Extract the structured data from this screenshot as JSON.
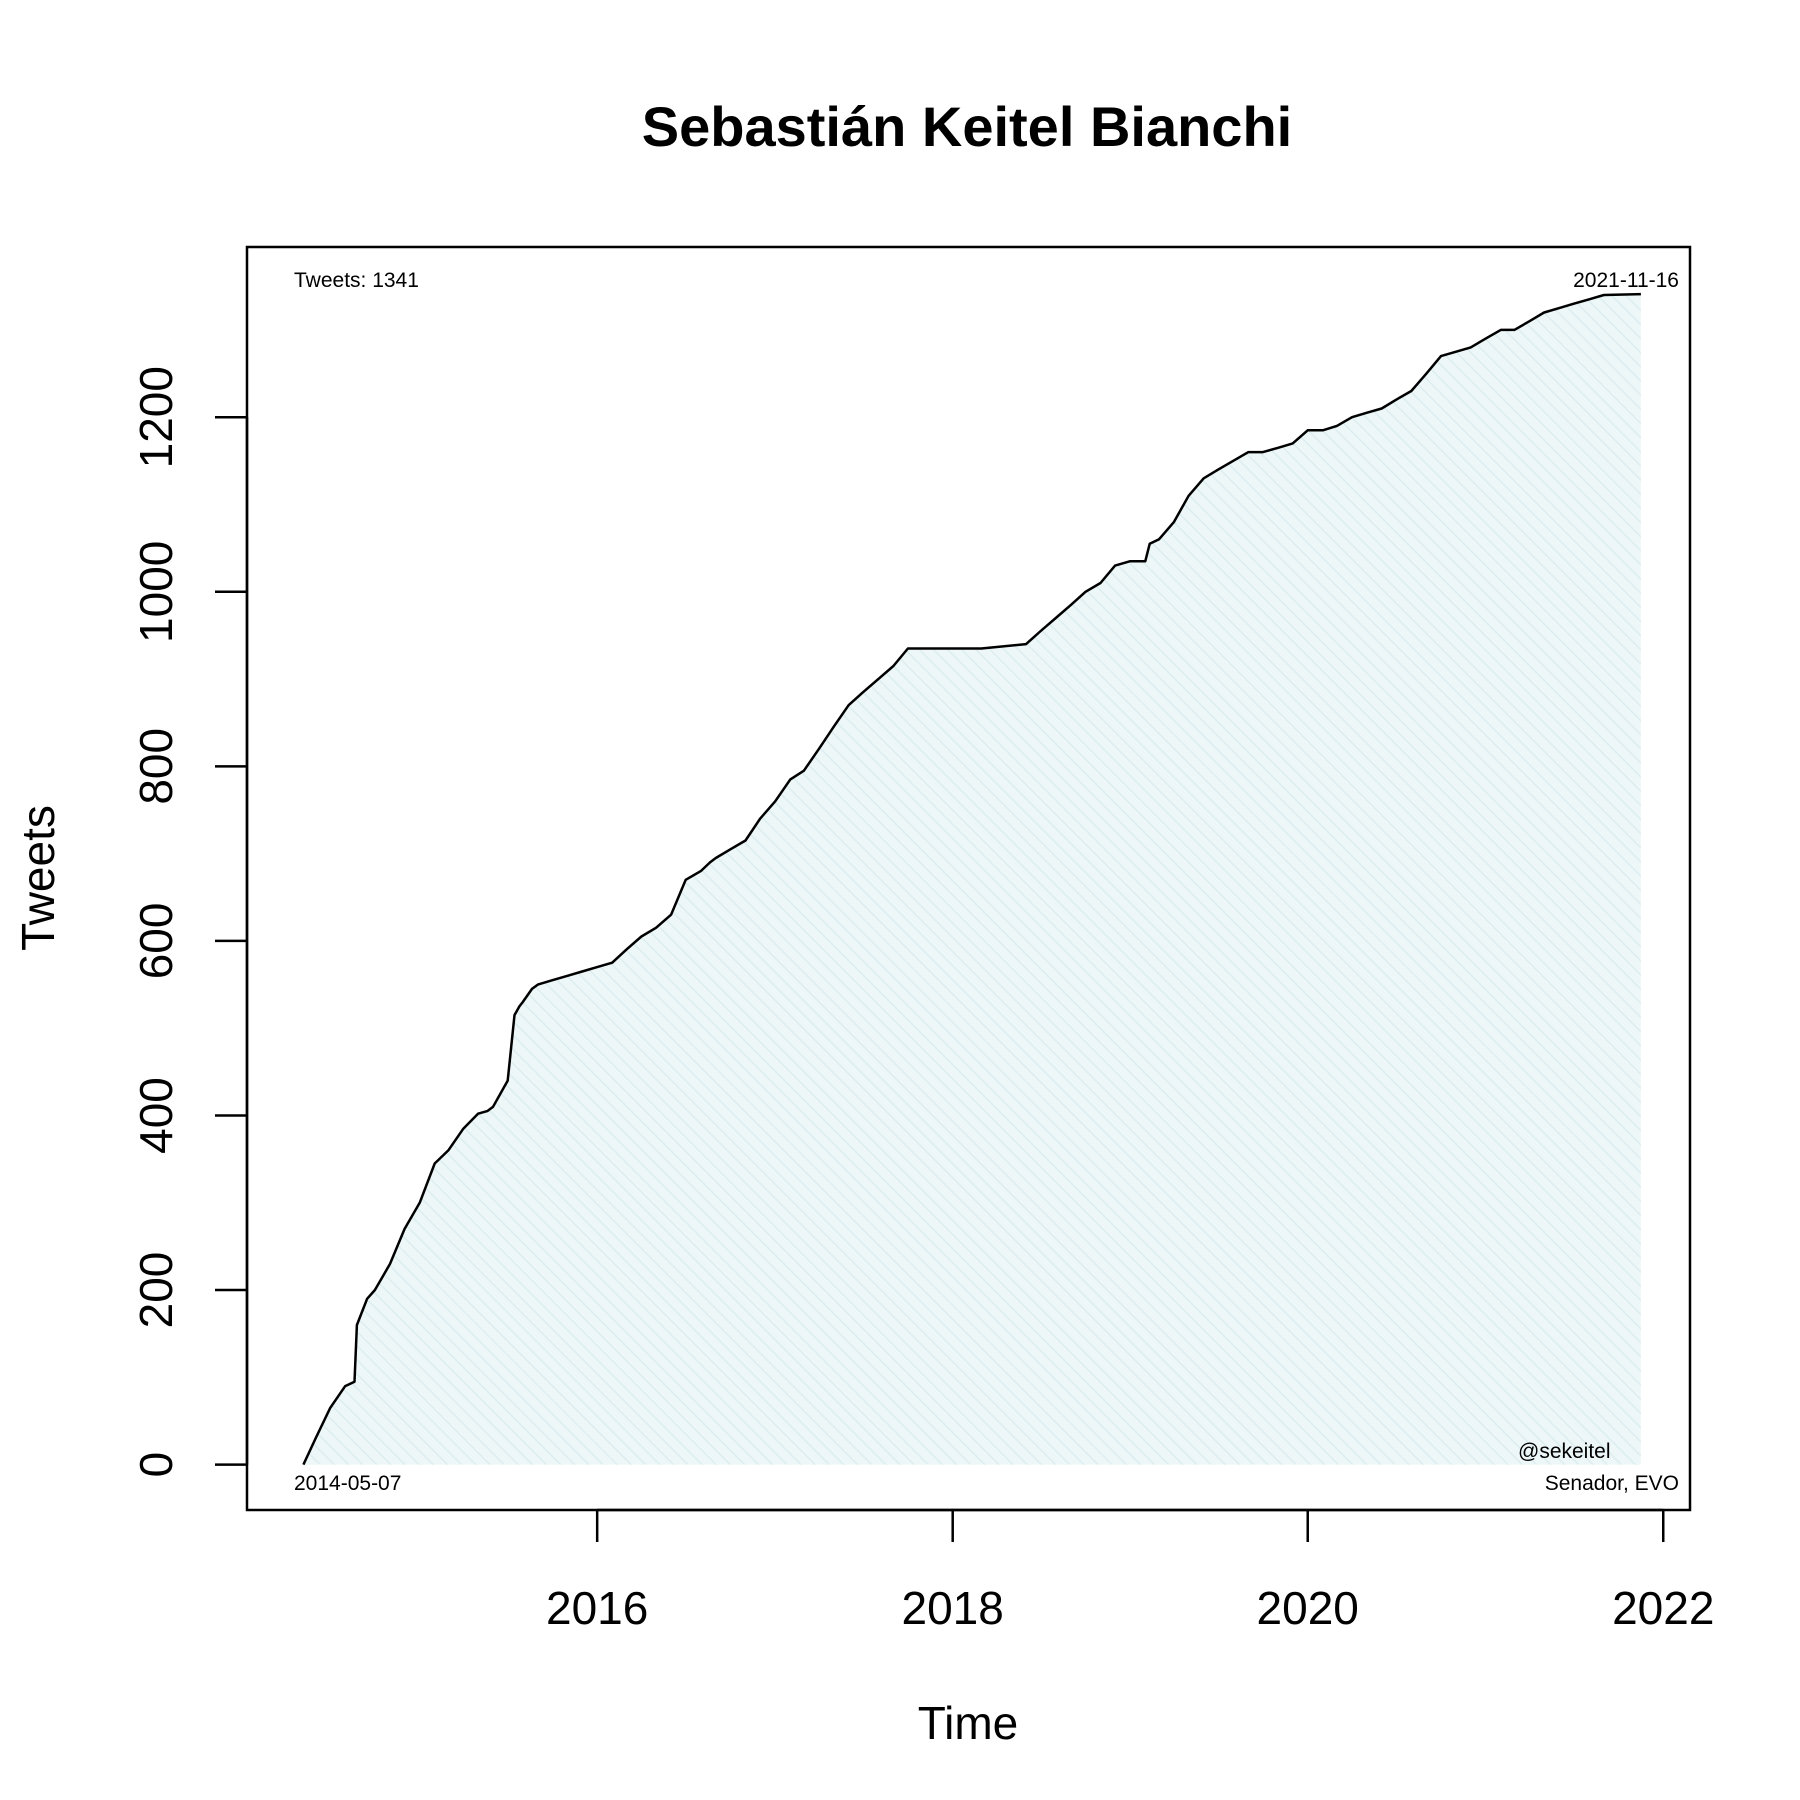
{
  "chart_data": {
    "type": "area",
    "title": "Sebastián Keitel Bianchi",
    "xlabel": "Time",
    "ylabel": "Tweets",
    "xlim": [
      "2014-01-11",
      "2022-02-25"
    ],
    "ylim": [
      -52,
      1395
    ],
    "x_ticks": [
      {
        "date": "2016-01-01",
        "label": "2016"
      },
      {
        "date": "2018-01-01",
        "label": "2018"
      },
      {
        "date": "2020-01-01",
        "label": "2020"
      },
      {
        "date": "2022-01-01",
        "label": "2022"
      }
    ],
    "y_ticks": [
      {
        "value": 0,
        "label": "0"
      },
      {
        "value": 200,
        "label": "200"
      },
      {
        "value": 400,
        "label": "400"
      },
      {
        "value": 600,
        "label": "600"
      },
      {
        "value": 800,
        "label": "800"
      },
      {
        "value": 1000,
        "label": "1000"
      },
      {
        "value": 1200,
        "label": "1200"
      }
    ],
    "annotations": {
      "top_left": "Tweets: 1341",
      "top_right": "2021-11-16",
      "bottom_left": "2014-05-07",
      "bottom_right_line1": "@sekeitel",
      "bottom_right_line2": "Senador, EVO"
    },
    "fill_color": "#e6f4f6",
    "line_color": "#000000",
    "grid": false,
    "series": [
      {
        "x": [
          "2014-05-07",
          "2014-06-01",
          "2014-07-01",
          "2014-08-01",
          "2014-08-20",
          "2014-08-25",
          "2014-09-15",
          "2014-10-01",
          "2014-11-01",
          "2014-12-01",
          "2015-01-01",
          "2015-02-01",
          "2015-03-01",
          "2015-04-01",
          "2015-05-01",
          "2015-05-20",
          "2015-06-01",
          "2015-07-01",
          "2015-07-15",
          "2015-07-25",
          "2015-08-01",
          "2015-08-20",
          "2015-09-01",
          "2015-10-01",
          "2015-11-01",
          "2015-12-01",
          "2016-01-01",
          "2016-02-01",
          "2016-03-01",
          "2016-04-01",
          "2016-05-01",
          "2016-06-01",
          "2016-07-01",
          "2016-08-01",
          "2016-08-20",
          "2016-09-01",
          "2016-10-01",
          "2016-11-01",
          "2016-12-01",
          "2017-01-01",
          "2017-02-01",
          "2017-03-01",
          "2017-04-01",
          "2017-05-01",
          "2017-06-01",
          "2017-07-01",
          "2017-08-01",
          "2017-09-01",
          "2017-10-01",
          "2017-11-01",
          "2017-11-15",
          "2017-12-01",
          "2017-12-05",
          "2018-01-01",
          "2018-03-01",
          "2018-06-01",
          "2018-07-01",
          "2018-08-01",
          "2018-09-01",
          "2018-10-01",
          "2018-11-01",
          "2018-12-01",
          "2019-01-01",
          "2019-02-01",
          "2019-02-10",
          "2019-03-01",
          "2019-04-01",
          "2019-05-01",
          "2019-06-01",
          "2019-07-01",
          "2019-08-01",
          "2019-09-01",
          "2019-10-01",
          "2019-11-01",
          "2019-12-01",
          "2020-01-01",
          "2020-02-01",
          "2020-03-01",
          "2020-04-01",
          "2020-05-01",
          "2020-06-01",
          "2020-07-01",
          "2020-08-01",
          "2020-09-01",
          "2020-10-01",
          "2020-11-01",
          "2020-12-01",
          "2021-01-01",
          "2021-02-01",
          "2021-03-01",
          "2021-04-01",
          "2021-05-01",
          "2021-06-01",
          "2021-07-01",
          "2021-08-01",
          "2021-09-01",
          "2021-11-16"
        ],
        "y": [
          0,
          30,
          65,
          90,
          95,
          160,
          190,
          200,
          230,
          270,
          300,
          345,
          360,
          385,
          402,
          405,
          410,
          440,
          515,
          525,
          530,
          545,
          550,
          555,
          560,
          565,
          570,
          575,
          590,
          605,
          615,
          630,
          670,
          680,
          690,
          695,
          705,
          715,
          740,
          760,
          785,
          795,
          820,
          845,
          870,
          885,
          900,
          915,
          935,
          935,
          935,
          935,
          935,
          935,
          935,
          940,
          955,
          970,
          985,
          1000,
          1010,
          1030,
          1035,
          1035,
          1055,
          1060,
          1080,
          1110,
          1130,
          1140,
          1150,
          1160,
          1160,
          1165,
          1170,
          1185,
          1185,
          1190,
          1200,
          1205,
          1210,
          1220,
          1230,
          1250,
          1270,
          1275,
          1280,
          1290,
          1300,
          1300,
          1310,
          1320,
          1325,
          1330,
          1335,
          1340,
          1341
        ]
      }
    ]
  }
}
